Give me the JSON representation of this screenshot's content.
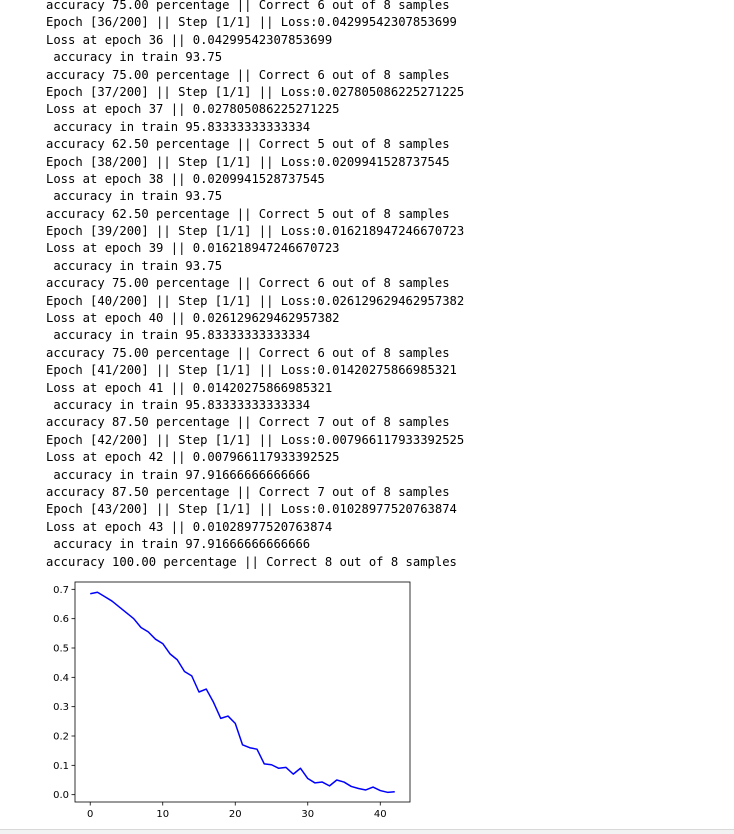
{
  "output_lines": [
    "accuracy 75.00 percentage || Correct 6 out of 8 samples",
    "Epoch [36/200] || Step [1/1] || Loss:0.04299542307853699",
    "Loss at epoch 36 || 0.04299542307853699",
    " accuracy in train 93.75",
    "accuracy 75.00 percentage || Correct 6 out of 8 samples",
    "Epoch [37/200] || Step [1/1] || Loss:0.027805086225271225",
    "Loss at epoch 37 || 0.027805086225271225",
    " accuracy in train 95.83333333333334",
    "accuracy 62.50 percentage || Correct 5 out of 8 samples",
    "Epoch [38/200] || Step [1/1] || Loss:0.0209941528737545",
    "Loss at epoch 38 || 0.0209941528737545",
    " accuracy in train 93.75",
    "accuracy 62.50 percentage || Correct 5 out of 8 samples",
    "Epoch [39/200] || Step [1/1] || Loss:0.016218947246670723",
    "Loss at epoch 39 || 0.016218947246670723",
    " accuracy in train 93.75",
    "accuracy 75.00 percentage || Correct 6 out of 8 samples",
    "Epoch [40/200] || Step [1/1] || Loss:0.026129629462957382",
    "Loss at epoch 40 || 0.026129629462957382",
    " accuracy in train 95.83333333333334",
    "accuracy 75.00 percentage || Correct 6 out of 8 samples",
    "Epoch [41/200] || Step [1/1] || Loss:0.01420275866985321",
    "Loss at epoch 41 || 0.01420275866985321",
    " accuracy in train 95.83333333333334",
    "accuracy 87.50 percentage || Correct 7 out of 8 samples",
    "Epoch [42/200] || Step [1/1] || Loss:0.007966117933392525",
    "Loss at epoch 42 || 0.007966117933392525",
    " accuracy in train 97.91666666666666",
    "accuracy 87.50 percentage || Correct 7 out of 8 samples",
    "Epoch [43/200] || Step [1/1] || Loss:0.01028977520763874",
    "Loss at epoch 43 || 0.01028977520763874",
    " accuracy in train 97.91666666666666",
    "accuracy 100.00 percentage || Correct 8 out of 8 samples"
  ],
  "chart_data": {
    "type": "line",
    "title": "",
    "xlabel": "",
    "ylabel": "",
    "xlim": [
      -2.1,
      44.1
    ],
    "ylim": [
      -0.025,
      0.725
    ],
    "xticks": [
      0,
      10,
      20,
      30,
      40
    ],
    "yticks": [
      0.0,
      0.1,
      0.2,
      0.3,
      0.4,
      0.5,
      0.6,
      0.7
    ],
    "ytick_labels": [
      "0.0",
      "0.1",
      "0.2",
      "0.3",
      "0.4",
      "0.5",
      "0.6",
      "0.7"
    ],
    "grid": false,
    "series": [
      {
        "color": "#0000ff",
        "x": [
          0,
          1,
          2,
          3,
          4,
          5,
          6,
          7,
          8,
          9,
          10,
          11,
          12,
          13,
          14,
          15,
          16,
          17,
          18,
          19,
          20,
          21,
          22,
          23,
          24,
          25,
          26,
          27,
          28,
          29,
          30,
          31,
          32,
          33,
          34,
          35,
          36,
          37,
          38,
          39,
          40,
          41,
          42
        ],
        "values": [
          0.685,
          0.69,
          0.675,
          0.66,
          0.64,
          0.62,
          0.6,
          0.57,
          0.555,
          0.53,
          0.515,
          0.48,
          0.46,
          0.42,
          0.405,
          0.35,
          0.36,
          0.315,
          0.26,
          0.268,
          0.243,
          0.17,
          0.16,
          0.155,
          0.105,
          0.102,
          0.09,
          0.093,
          0.07,
          0.09,
          0.055,
          0.04,
          0.043,
          0.03,
          0.05,
          0.043,
          0.028,
          0.021,
          0.016,
          0.026,
          0.014,
          0.008,
          0.01
        ]
      }
    ]
  }
}
